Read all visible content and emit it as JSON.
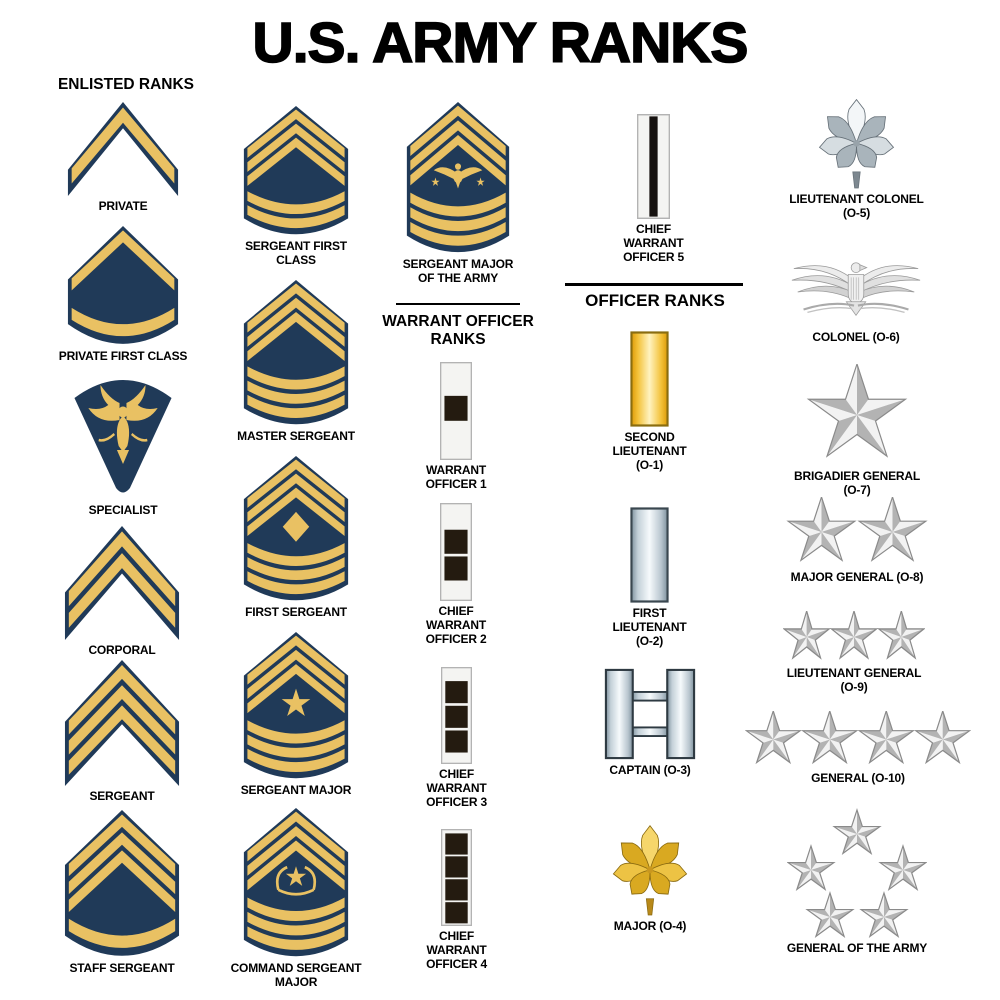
{
  "title": "U.S. ARMY RANKS",
  "colors": {
    "gold": "#E9C163",
    "navy": "#203A58",
    "wo_square": "#241B10",
    "bar_gold_mid": "#FFF3C0",
    "bar_gold_edge": "#DD9B08",
    "bar_silver_mid": "#F6FAFC",
    "bar_silver_edge": "#7F929E",
    "star_light": "#F2F2F2",
    "star_dark": "#B3B3B3",
    "text": "#000000"
  },
  "sections": [
    {
      "id": "enlisted",
      "label": "ENLISTED RANKS"
    },
    {
      "id": "warrant",
      "label": "WARRANT OFFICER\nRANKS"
    },
    {
      "id": "officer",
      "label": "OFFICER RANKS"
    }
  ],
  "ranks": [
    {
      "id": "private",
      "label": "PRIVATE",
      "section": "enlisted",
      "insignia": {
        "type": "enlisted-chevron",
        "chevrons": 1,
        "rockers": 0,
        "device": null
      }
    },
    {
      "id": "private-first-class",
      "label": "PRIVATE FIRST CLASS",
      "section": "enlisted",
      "insignia": {
        "type": "enlisted-chevron",
        "chevrons": 1,
        "rockers": 1,
        "device": null
      }
    },
    {
      "id": "specialist",
      "label": "SPECIALIST",
      "section": "enlisted",
      "insignia": {
        "type": "specialist-eagle"
      }
    },
    {
      "id": "corporal",
      "label": "CORPORAL",
      "section": "enlisted",
      "insignia": {
        "type": "enlisted-chevron",
        "chevrons": 2,
        "rockers": 0,
        "device": null
      }
    },
    {
      "id": "sergeant",
      "label": "SERGEANT",
      "section": "enlisted",
      "insignia": {
        "type": "enlisted-chevron",
        "chevrons": 3,
        "rockers": 0,
        "device": null
      }
    },
    {
      "id": "staff-sergeant",
      "label": "STAFF SERGEANT",
      "section": "enlisted",
      "insignia": {
        "type": "enlisted-chevron",
        "chevrons": 3,
        "rockers": 1,
        "device": null
      }
    },
    {
      "id": "sergeant-first-class",
      "label": "SERGEANT FIRST\nCLASS",
      "section": "enlisted",
      "insignia": {
        "type": "enlisted-chevron",
        "chevrons": 3,
        "rockers": 2,
        "device": null
      }
    },
    {
      "id": "master-sergeant",
      "label": "MASTER SERGEANT",
      "section": "enlisted",
      "insignia": {
        "type": "enlisted-chevron",
        "chevrons": 3,
        "rockers": 3,
        "device": null
      }
    },
    {
      "id": "first-sergeant",
      "label": "FIRST SERGEANT",
      "section": "enlisted",
      "insignia": {
        "type": "enlisted-chevron",
        "chevrons": 3,
        "rockers": 3,
        "device": "diamond"
      }
    },
    {
      "id": "sergeant-major",
      "label": "SERGEANT MAJOR",
      "section": "enlisted",
      "insignia": {
        "type": "enlisted-chevron",
        "chevrons": 3,
        "rockers": 3,
        "device": "star"
      }
    },
    {
      "id": "command-sergeant-major",
      "label": "COMMAND SERGEANT\nMAJOR",
      "section": "enlisted",
      "insignia": {
        "type": "enlisted-chevron",
        "chevrons": 3,
        "rockers": 3,
        "device": "wreath-star"
      }
    },
    {
      "id": "sergeant-major-of-the-army",
      "label": "SERGEANT MAJOR\nOF THE ARMY",
      "section": "enlisted",
      "insignia": {
        "type": "enlisted-chevron",
        "chevrons": 3,
        "rockers": 3,
        "device": "eagle-stars"
      }
    },
    {
      "id": "warrant-officer-1",
      "label": "WARRANT OFFICER 1",
      "section": "warrant",
      "insignia": {
        "type": "wo-bar",
        "squares": 1
      }
    },
    {
      "id": "chief-warrant-officer-2",
      "label": "CHIEF WARRANT\nOFFICER 2",
      "section": "warrant",
      "insignia": {
        "type": "wo-bar",
        "squares": 2
      }
    },
    {
      "id": "chief-warrant-officer-3",
      "label": "CHIEF WARRANT\nOFFICER 3",
      "section": "warrant",
      "insignia": {
        "type": "wo-bar",
        "squares": 3
      }
    },
    {
      "id": "chief-warrant-officer-4",
      "label": "CHIEF WARRANT\nOFFICER 4",
      "section": "warrant",
      "insignia": {
        "type": "wo-bar",
        "squares": 4
      }
    },
    {
      "id": "chief-warrant-officer-5",
      "label": "CHIEF WARRANT\nOFFICER 5",
      "section": "warrant",
      "insignia": {
        "type": "wo-bar",
        "squares": 0,
        "stripe": true
      }
    },
    {
      "id": "second-lieutenant",
      "label": "SECOND LIEUTENANT\n(O-1)",
      "section": "officer",
      "insignia": {
        "type": "bar",
        "metal": "gold"
      }
    },
    {
      "id": "first-lieutenant",
      "label": "FIRST LIEUTENANT\n(O-2)",
      "section": "officer",
      "insignia": {
        "type": "bar",
        "metal": "silver"
      }
    },
    {
      "id": "captain",
      "label": "CAPTAIN (O-3)",
      "section": "officer",
      "insignia": {
        "type": "double-bar",
        "metal": "silver"
      }
    },
    {
      "id": "major",
      "label": "MAJOR (O-4)",
      "section": "officer",
      "insignia": {
        "type": "oak-leaf",
        "metal": "gold"
      }
    },
    {
      "id": "lieutenant-colonel",
      "label": "LIEUTENANT COLONEL\n(O-5)",
      "section": "officer",
      "insignia": {
        "type": "oak-leaf",
        "metal": "silver"
      }
    },
    {
      "id": "colonel",
      "label": "COLONEL (O-6)",
      "section": "officer",
      "insignia": {
        "type": "eagle",
        "metal": "silver"
      }
    },
    {
      "id": "brigadier-general",
      "label": "BRIGADIER GENERAL\n(O-7)",
      "section": "officer",
      "insignia": {
        "type": "stars",
        "count": 1,
        "arrangement": "row"
      }
    },
    {
      "id": "major-general",
      "label": "MAJOR GENERAL (O-8)",
      "section": "officer",
      "insignia": {
        "type": "stars",
        "count": 2,
        "arrangement": "row"
      }
    },
    {
      "id": "lieutenant-general",
      "label": "LIEUTENANT GENERAL\n(O-9)",
      "section": "officer",
      "insignia": {
        "type": "stars",
        "count": 3,
        "arrangement": "row"
      }
    },
    {
      "id": "general",
      "label": "GENERAL (O-10)",
      "section": "officer",
      "insignia": {
        "type": "stars",
        "count": 4,
        "arrangement": "row"
      }
    },
    {
      "id": "general-of-the-army",
      "label": "GENERAL OF THE ARMY",
      "section": "officer",
      "insignia": {
        "type": "stars",
        "count": 5,
        "arrangement": "pentagon"
      }
    }
  ]
}
